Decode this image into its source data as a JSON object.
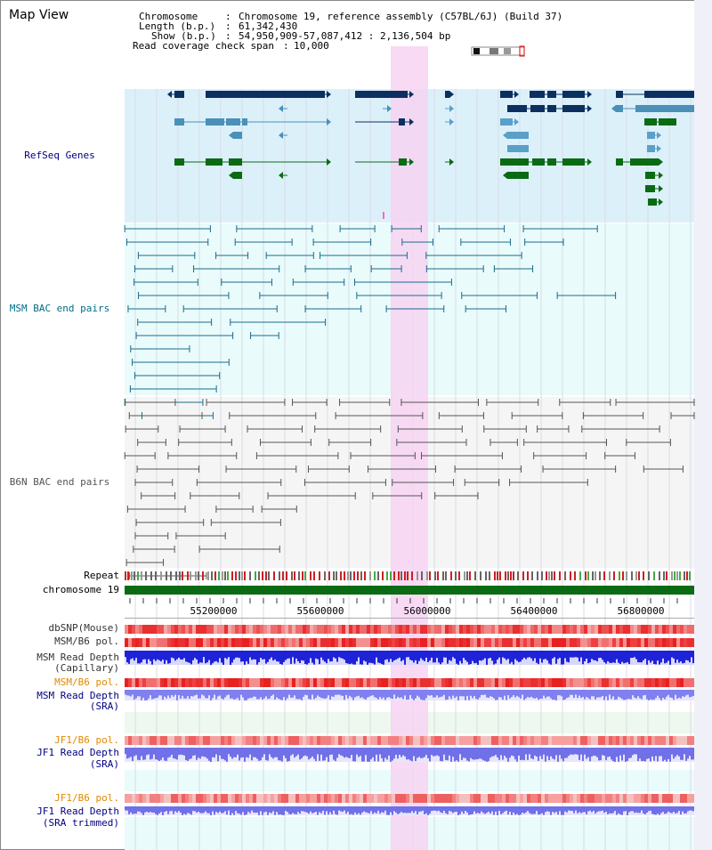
{
  "title": "Map View",
  "info": {
    "chromosome_key": "Chromosome",
    "chromosome_val": "Chromosome 19, reference assembly (C57BL/6J) (Build 37)",
    "length_key": "Length (b.p.)",
    "length_val": "61,342,430",
    "show_key": "Show (b.p.)",
    "show_val": "54,950,909-57,087,412 : 2,136,504 bp",
    "span_key": "Read coverage check span",
    "span_val": "10,000"
  },
  "tracks": {
    "refseq": "RefSeq Genes",
    "msm_bac": "MSM BAC end pairs",
    "b6n_bac": "B6N BAC end pairs",
    "repeat": "Repeat",
    "chrom": "chromosome 19",
    "dbsnp": "dbSNP(Mouse)",
    "msm_pol1": "MSM/B6 pol.",
    "msm_depth_cap_1": "MSM Read Depth",
    "msm_depth_cap_2": "(Capillary)",
    "msm_pol2": "MSM/B6 pol.",
    "msm_depth_sra_1": "MSM Read Depth",
    "msm_depth_sra_2": "(SRA)",
    "jf1_pol1": "JF1/B6 pol.",
    "jf1_depth_sra_1": "JF1 Read Depth",
    "jf1_depth_sra_2": "(SRA)",
    "jf1_pol2": "JF1/B6 pol.",
    "jf1_depth_trim_1": "JF1 Read Depth",
    "jf1_depth_trim_2": "(SRA trimmed)"
  },
  "ruler_ticks": [
    "55200000",
    "55600000",
    "56000000",
    "56400000",
    "56800000"
  ],
  "colors": {
    "gene_dark": "#0b3060",
    "gene_mid": "#4a90b8",
    "gene_green": "#0a6b14",
    "refseq_bg": "#dcf0fa",
    "msm_bg": "#e9fbfb",
    "b6n_bg": "#f5f5f5",
    "highlight": "#f7d4f2",
    "msm_bac": "#1b6b8c",
    "b6n_bac": "#555555",
    "refseq_label": "#000080",
    "msm_label": "#006e8a",
    "pol_label": "#e08a00",
    "depth_label": "#000080"
  }
}
